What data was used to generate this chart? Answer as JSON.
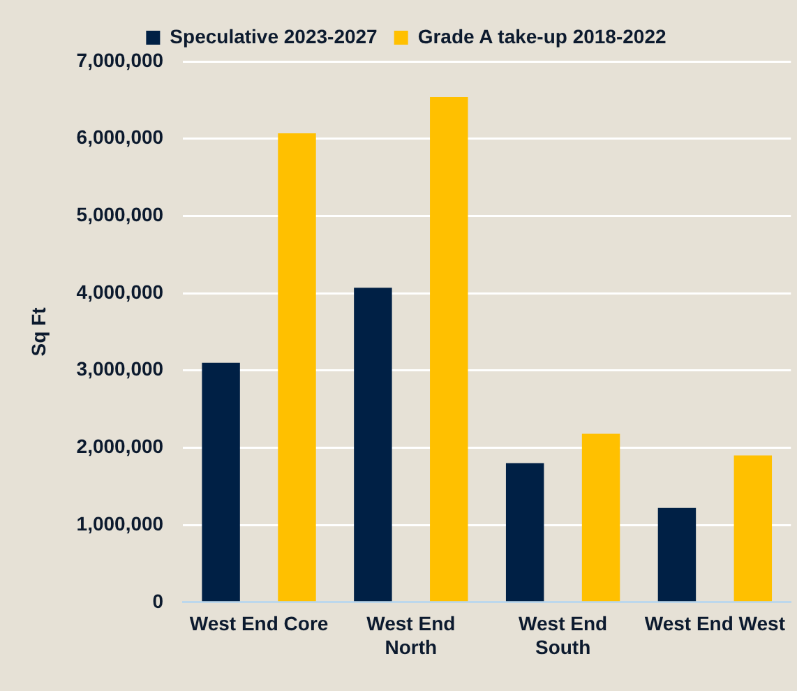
{
  "chart_data": {
    "type": "bar",
    "ylabel": "Sq Ft",
    "categories": [
      "West End Core",
      "West End North",
      "West End South",
      "West End West"
    ],
    "series": [
      {
        "name": "Speculative 2023-2027",
        "color": "#002045",
        "values": [
          3100000,
          4070000,
          1800000,
          1220000
        ]
      },
      {
        "name": "Grade A take-up 2018-2022",
        "color": "#ffc000",
        "values": [
          6070000,
          6540000,
          2180000,
          1900000
        ]
      }
    ],
    "ylim": [
      0,
      7000000
    ],
    "yticks": [
      0,
      {
        "value": 1000000,
        "label": "1,000,000"
      },
      {
        "value": 2000000,
        "label": "2,000,000"
      },
      {
        "value": 3000000,
        "label": "3,000,000"
      },
      {
        "value": 4000000,
        "label": "4,000,000"
      },
      {
        "value": 5000000,
        "label": "5,000,000"
      },
      {
        "value": 6000000,
        "label": "6,000,000"
      },
      {
        "value": 7000000,
        "label": "7,000,000"
      }
    ],
    "grid": "y",
    "legend": "top"
  }
}
